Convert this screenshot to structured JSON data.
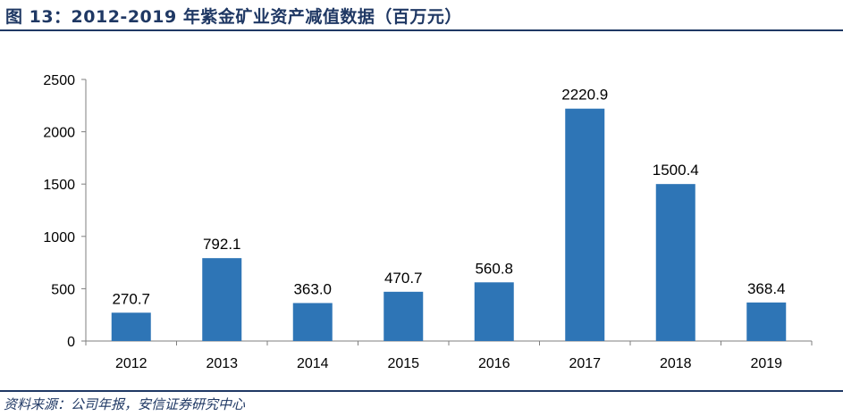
{
  "title": "图 13：2012-2019 年紫金矿业资产减值数据（百万元）",
  "source": "资料来源：公司年报，安信证券研究中心",
  "chart_data": {
    "type": "bar",
    "categories": [
      "2012",
      "2013",
      "2014",
      "2015",
      "2016",
      "2017",
      "2018",
      "2019"
    ],
    "values": [
      270.7,
      792.1,
      363.0,
      470.7,
      560.8,
      2220.9,
      1500.4,
      368.4
    ],
    "data_labels": [
      "270.7",
      "792.1",
      "363.0",
      "470.7",
      "560.8",
      "2220.9",
      "1500.4",
      "368.4"
    ],
    "ylim": [
      0,
      2500
    ],
    "yticks": [
      0,
      500,
      1000,
      1500,
      2000,
      2500
    ],
    "grid": false,
    "bar_color": "#2e75b6"
  }
}
